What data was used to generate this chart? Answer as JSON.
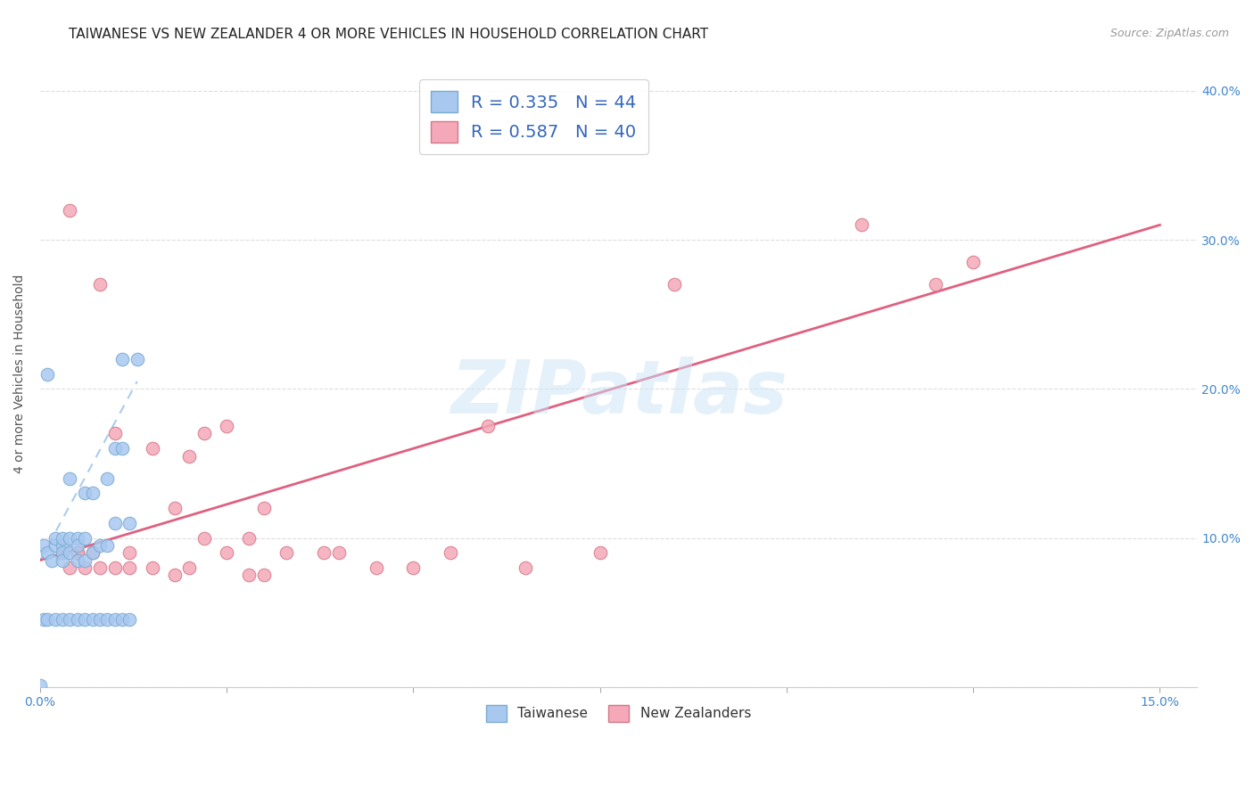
{
  "title": "TAIWANESE VS NEW ZEALANDER 4 OR MORE VEHICLES IN HOUSEHOLD CORRELATION CHART",
  "source": "Source: ZipAtlas.com",
  "ylabel": "4 or more Vehicles in Household",
  "watermark": "ZIPatlas",
  "xlim": [
    0.0,
    0.155
  ],
  "ylim": [
    0.0,
    0.42
  ],
  "xtick_positions": [
    0.0,
    0.025,
    0.05,
    0.075,
    0.1,
    0.125,
    0.15
  ],
  "xtick_labels": [
    "0.0%",
    "",
    "",
    "",
    "",
    "",
    "15.0%"
  ],
  "ytick_positions": [
    0.0,
    0.1,
    0.2,
    0.3,
    0.4
  ],
  "ytick_labels": [
    "",
    "10.0%",
    "20.0%",
    "30.0%",
    "40.0%"
  ],
  "taiwanese_color": "#a8c8f0",
  "taiwanese_edge": "#7aaad0",
  "nz_color": "#f4a8b8",
  "nz_edge": "#d47888",
  "grid_color": "#dddddd",
  "background_color": "#ffffff",
  "title_fontsize": 11,
  "axis_label_fontsize": 10,
  "tick_fontsize": 10,
  "tick_color": "#4488cc",
  "tw_trendline": [
    0.0,
    0.085,
    0.013,
    0.205
  ],
  "nz_trendline": [
    0.0,
    0.085,
    0.15,
    0.31
  ],
  "tw_x": [
    0.0005,
    0.001,
    0.001,
    0.0015,
    0.002,
    0.002,
    0.003,
    0.003,
    0.003,
    0.003,
    0.004,
    0.004,
    0.004,
    0.005,
    0.005,
    0.005,
    0.006,
    0.006,
    0.006,
    0.007,
    0.007,
    0.008,
    0.009,
    0.009,
    0.01,
    0.01,
    0.011,
    0.011,
    0.012,
    0.013,
    0.0005,
    0.001,
    0.002,
    0.003,
    0.004,
    0.005,
    0.006,
    0.007,
    0.008,
    0.009,
    0.01,
    0.011,
    0.012,
    0.0
  ],
  "tw_y": [
    0.095,
    0.09,
    0.21,
    0.085,
    0.095,
    0.1,
    0.095,
    0.09,
    0.1,
    0.085,
    0.09,
    0.14,
    0.1,
    0.085,
    0.1,
    0.095,
    0.085,
    0.1,
    0.13,
    0.09,
    0.13,
    0.095,
    0.14,
    0.095,
    0.16,
    0.11,
    0.16,
    0.22,
    0.11,
    0.22,
    0.045,
    0.045,
    0.045,
    0.045,
    0.045,
    0.045,
    0.045,
    0.045,
    0.045,
    0.045,
    0.045,
    0.045,
    0.045,
    0.001
  ],
  "nz_x": [
    0.004,
    0.005,
    0.008,
    0.01,
    0.012,
    0.015,
    0.018,
    0.02,
    0.022,
    0.025,
    0.028,
    0.03,
    0.033,
    0.038,
    0.04,
    0.045,
    0.05,
    0.055,
    0.06,
    0.065,
    0.075,
    0.085,
    0.11,
    0.12,
    0.125,
    0.003,
    0.004,
    0.005,
    0.006,
    0.007,
    0.008,
    0.01,
    0.012,
    0.015,
    0.018,
    0.02,
    0.022,
    0.025,
    0.028,
    0.03
  ],
  "nz_y": [
    0.32,
    0.09,
    0.27,
    0.17,
    0.09,
    0.16,
    0.12,
    0.155,
    0.1,
    0.175,
    0.1,
    0.12,
    0.09,
    0.09,
    0.09,
    0.08,
    0.08,
    0.09,
    0.175,
    0.08,
    0.09,
    0.27,
    0.31,
    0.27,
    0.285,
    0.09,
    0.08,
    0.09,
    0.08,
    0.09,
    0.08,
    0.08,
    0.08,
    0.08,
    0.075,
    0.08,
    0.17,
    0.09,
    0.075,
    0.075
  ]
}
